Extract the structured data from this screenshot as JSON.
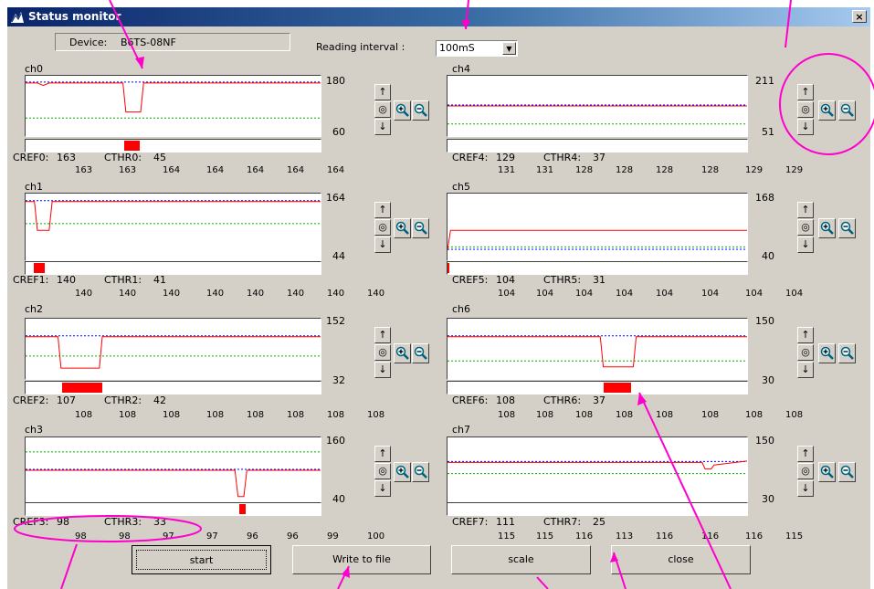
{
  "window": {
    "title": "Status monitor",
    "close_glyph": "×"
  },
  "header": {
    "device_label": "Device:",
    "device_value": "B6TS-08NF",
    "interval_label": "Reading interval :",
    "interval_value": "100mS"
  },
  "controls": {
    "up_glyph": "↑",
    "reset_glyph": "◎",
    "down_glyph": "↓"
  },
  "channels": [
    {
      "name": "ch0",
      "scale_max": "180",
      "scale_min": "60",
      "cref_label": "CREF0:",
      "cref": "163",
      "cthr_label": "CTHR0:",
      "cthr": "45",
      "history": [
        "163",
        "163",
        "164",
        "164",
        "164",
        "164",
        "164"
      ]
    },
    {
      "name": "ch1",
      "scale_max": "164",
      "scale_min": "44",
      "cref_label": "CREF1:",
      "cref": "140",
      "cthr_label": "CTHR1:",
      "cthr": "41",
      "history": [
        "140",
        "140",
        "140",
        "140",
        "140",
        "140",
        "140",
        "140"
      ]
    },
    {
      "name": "ch2",
      "scale_max": "152",
      "scale_min": "32",
      "cref_label": "CREF2:",
      "cref": "107",
      "cthr_label": "CTHR2:",
      "cthr": "42",
      "history": [
        "108",
        "108",
        "108",
        "108",
        "108",
        "108",
        "108",
        "108"
      ]
    },
    {
      "name": "ch3",
      "scale_max": "160",
      "scale_min": "40",
      "cref_label": "CREF3:",
      "cref": "98",
      "cthr_label": "CTHR3:",
      "cthr": "33",
      "history": [
        "98",
        "98",
        "97",
        "97",
        "96",
        "96",
        "99",
        "100"
      ]
    },
    {
      "name": "ch4",
      "scale_max": "211",
      "scale_min": "51",
      "cref_label": "CREF4:",
      "cref": "129",
      "cthr_label": "CTHR4:",
      "cthr": "37",
      "history": [
        "131",
        "131",
        "128",
        "128",
        "128",
        "128",
        "129",
        "129"
      ]
    },
    {
      "name": "ch5",
      "scale_max": "168",
      "scale_min": "40",
      "cref_label": "CREF5:",
      "cref": "104",
      "cthr_label": "CTHR5:",
      "cthr": "31",
      "history": [
        "104",
        "104",
        "104",
        "104",
        "104",
        "104",
        "104",
        "104"
      ]
    },
    {
      "name": "ch6",
      "scale_max": "150",
      "scale_min": "30",
      "cref_label": "CREF6:",
      "cref": "108",
      "cthr_label": "CTHR6:",
      "cthr": "37",
      "history": [
        "108",
        "108",
        "108",
        "108",
        "108",
        "108",
        "108",
        "108"
      ]
    },
    {
      "name": "ch7",
      "scale_max": "150",
      "scale_min": "30",
      "cref_label": "CREF7:",
      "cref": "111",
      "cthr_label": "CTHR7:",
      "cthr": "25",
      "history": [
        "115",
        "115",
        "116",
        "113",
        "116",
        "116",
        "116",
        "115"
      ]
    }
  ],
  "buttons": {
    "start": "start",
    "write": "Write to file",
    "scale": "scale",
    "close": "close"
  },
  "colors": {
    "signal": "#ff0000",
    "reference": "#0000ff",
    "threshold": "#00b000",
    "annotation": "#ff00cc",
    "titlebar": "#0a246a"
  },
  "icons": {
    "app": "app-icon",
    "zoom_in": "zoom-in-icon",
    "zoom_out": "zoom-out-icon"
  }
}
